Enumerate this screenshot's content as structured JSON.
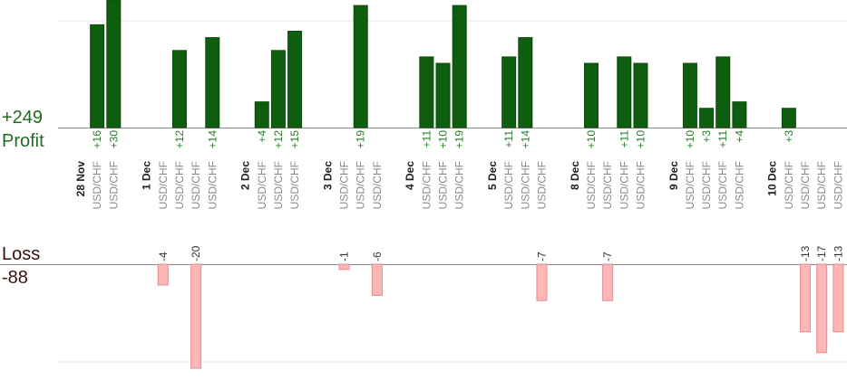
{
  "summary": {
    "profit_total": "+249",
    "profit_label": "Profit",
    "loss_label": "Loss",
    "loss_total": "-88"
  },
  "colors": {
    "profit_bar": "#0f5e0f",
    "profit_bar_edge": "#0b4a0b",
    "profit_text": "#2a7a2a",
    "loss_bar": "#ffb6b6",
    "loss_bar_edge": "#e58c8c",
    "loss_text": "#333333",
    "date_text": "#222222",
    "pair_text": "#8a8a8a",
    "baseline": "#888888",
    "gridline": "#e6e6e6"
  },
  "chart_data": {
    "type": "bar",
    "title": "",
    "xlabel": "",
    "ylabel": "",
    "profit_total": 249,
    "loss_total": -88,
    "grid": true,
    "columns": [
      {
        "date": "28 Nov"
      },
      {
        "pair": "USD/CHF",
        "value": 16,
        "label": "+16"
      },
      {
        "pair": "USD/CHF",
        "value": 30,
        "label": "+30"
      },
      {
        "gap": true
      },
      {
        "date": "1 Dec"
      },
      {
        "pair": "USD/CHF",
        "value": -4,
        "label": "-4"
      },
      {
        "pair": "USD/CHF",
        "value": 12,
        "label": "+12"
      },
      {
        "pair": "USD/CHF",
        "value": -20,
        "label": "-20"
      },
      {
        "pair": "USD/CHF",
        "value": 14,
        "label": "+14"
      },
      {
        "gap": true
      },
      {
        "date": "2 Dec"
      },
      {
        "pair": "USD/CHF",
        "value": 4,
        "label": "+4"
      },
      {
        "pair": "USD/CHF",
        "value": 12,
        "label": "+12"
      },
      {
        "pair": "USD/CHF",
        "value": 15,
        "label": "+15"
      },
      {
        "gap": true
      },
      {
        "date": "3 Dec"
      },
      {
        "pair": "USD/CHF",
        "value": -1,
        "label": "-1"
      },
      {
        "pair": "USD/CHF",
        "value": 19,
        "label": "+19"
      },
      {
        "pair": "USD/CHF",
        "value": -6,
        "label": "-6"
      },
      {
        "gap": true
      },
      {
        "date": "4 Dec"
      },
      {
        "pair": "USD/CHF",
        "value": 11,
        "label": "+11"
      },
      {
        "pair": "USD/CHF",
        "value": 10,
        "label": "+10"
      },
      {
        "pair": "USD/CHF",
        "value": 19,
        "label": "+19"
      },
      {
        "gap": true
      },
      {
        "date": "5 Dec"
      },
      {
        "pair": "USD/CHF",
        "value": 11,
        "label": "+11"
      },
      {
        "pair": "USD/CHF",
        "value": 14,
        "label": "+14"
      },
      {
        "pair": "USD/CHF",
        "value": -7,
        "label": "-7"
      },
      {
        "gap": true
      },
      {
        "date": "8 Dec"
      },
      {
        "pair": "USD/CHF",
        "value": 10,
        "label": "+10"
      },
      {
        "pair": "USD/CHF",
        "value": -7,
        "label": "-7"
      },
      {
        "pair": "USD/CHF",
        "value": 11,
        "label": "+11"
      },
      {
        "pair": "USD/CHF",
        "value": 10,
        "label": "+10"
      },
      {
        "gap": true
      },
      {
        "date": "9 Dec"
      },
      {
        "pair": "USD/CHF",
        "value": 10,
        "label": "+10"
      },
      {
        "pair": "USD/CHF",
        "value": 3,
        "label": "+3"
      },
      {
        "pair": "USD/CHF",
        "value": 11,
        "label": "+11"
      },
      {
        "pair": "USD/CHF",
        "value": 4,
        "label": "+4"
      },
      {
        "gap": true
      },
      {
        "date": "10 Dec"
      },
      {
        "pair": "USD/CHF",
        "value": 3,
        "label": "+3"
      },
      {
        "pair": "USD/CHF",
        "value": -13,
        "label": "-13"
      },
      {
        "pair": "USD/CHF",
        "value": -17,
        "label": "-17"
      },
      {
        "pair": "USD/CHF",
        "value": -13,
        "label": "-13"
      }
    ]
  }
}
